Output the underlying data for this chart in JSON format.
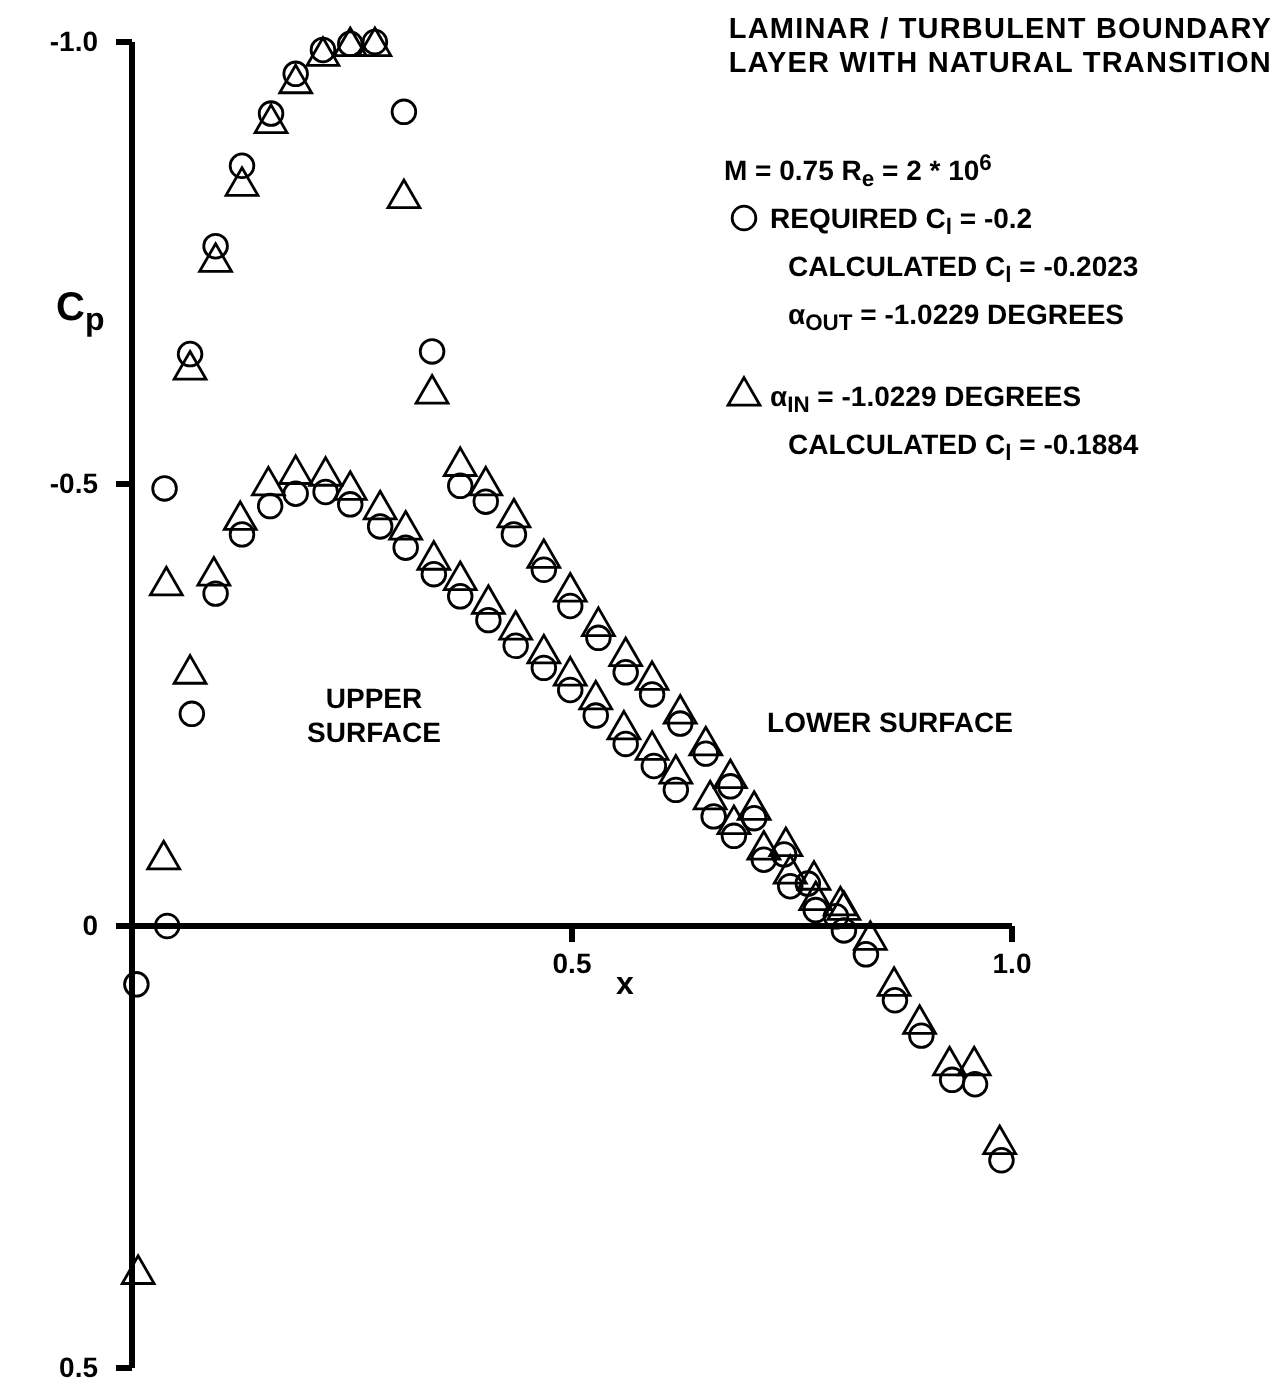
{
  "chart_data": {
    "type": "scatter",
    "title": "LAMINAR / TURBULENT BOUNDARY LAYER WITH NATURAL TRANSITION",
    "subtitle": "M = 0.75   R$_{e}$ = 2 * 10$^{6}$",
    "xlabel": "x",
    "ylabel": "C$_{p}$",
    "xlim": [
      0,
      1.0
    ],
    "xticks": [
      0.5,
      {
        "value": 1.0,
        "label": "1.0"
      }
    ],
    "ylim": [
      0.5,
      -1.0
    ],
    "yticks": [
      {
        "value": -1.0,
        "label": "-1.0"
      },
      -0.5,
      0,
      0.5
    ],
    "legend": "top right",
    "grid": false,
    "series": [
      {
        "name": "REQUIRED C$_{l}$ = -0.2",
        "color": "#000000",
        "marker": "circle",
        "x": [
          0.005,
          0.04,
          0.068,
          0.037,
          0.066,
          0.095,
          0.125,
          0.158,
          0.186,
          0.217,
          0.248,
          0.276,
          0.309,
          0.341,
          0.373,
          0.402,
          0.434,
          0.468,
          0.498,
          0.53,
          0.561,
          0.591,
          0.623,
          0.652,
          0.68,
          0.707,
          0.741,
          0.768,
          0.8,
          0.834,
          0.867,
          0.897,
          0.932,
          0.958,
          0.988,
          0.095,
          0.125,
          0.157,
          0.186,
          0.22,
          0.248,
          0.282,
          0.311,
          0.343,
          0.373,
          0.405,
          0.436,
          0.468,
          0.498,
          0.527,
          0.561,
          0.593,
          0.618,
          0.661,
          0.684,
          0.718,
          0.748,
          0.777,
          0.809
        ],
        "values": [
          0.066,
          0,
          -0.24,
          -0.495,
          -0.647,
          -0.769,
          -0.86,
          -0.919,
          -0.964,
          -0.991,
          -0.998,
          -1.0,
          -0.921,
          -0.65,
          -0.498,
          -0.48,
          -0.443,
          -0.403,
          -0.362,
          -0.326,
          -0.287,
          -0.262,
          -0.229,
          -0.195,
          -0.158,
          -0.122,
          -0.081,
          -0.048,
          -0.011,
          0.032,
          0.084,
          0.124,
          0.174,
          0.179,
          0.265,
          -0.376,
          -0.443,
          -0.475,
          -0.489,
          -0.491,
          -0.477,
          -0.452,
          -0.428,
          -0.398,
          -0.373,
          -0.346,
          -0.317,
          -0.292,
          -0.267,
          -0.238,
          -0.206,
          -0.181,
          -0.154,
          -0.124,
          -0.102,
          -0.075,
          -0.045,
          -0.018,
          0.005
        ]
      },
      {
        "name": "α$_{IN}$ = -1.0229 DEGREES",
        "color": "#000000",
        "marker": "triangle",
        "x": [
          0.007,
          0.036,
          0.066,
          0.039,
          0.066,
          0.095,
          0.125,
          0.158,
          0.186,
          0.217,
          0.248,
          0.276,
          0.309,
          0.341,
          0.373,
          0.402,
          0.434,
          0.468,
          0.498,
          0.53,
          0.561,
          0.591,
          0.623,
          0.652,
          0.68,
          0.707,
          0.743,
          0.775,
          0.805,
          0.839,
          0.866,
          0.895,
          0.929,
          0.957,
          0.986,
          0.093,
          0.123,
          0.155,
          0.186,
          0.22,
          0.248,
          0.282,
          0.311,
          0.343,
          0.373,
          0.405,
          0.436,
          0.468,
          0.498,
          0.527,
          0.559,
          0.591,
          0.618,
          0.657,
          0.684,
          0.718,
          0.748,
          0.777,
          0.809
        ],
        "values": [
          0.394,
          -0.075,
          -0.285,
          -0.385,
          -0.629,
          -0.751,
          -0.837,
          -0.908,
          -0.953,
          -0.984,
          -0.995,
          -0.995,
          -0.823,
          -0.602,
          -0.52,
          -0.498,
          -0.462,
          -0.416,
          -0.378,
          -0.339,
          -0.305,
          -0.278,
          -0.24,
          -0.204,
          -0.167,
          -0.131,
          -0.09,
          -0.052,
          -0.023,
          0.016,
          0.068,
          0.111,
          0.158,
          0.158,
          0.247,
          -0.396,
          -0.459,
          -0.498,
          -0.511,
          -0.509,
          -0.493,
          -0.471,
          -0.448,
          -0.414,
          -0.391,
          -0.364,
          -0.335,
          -0.308,
          -0.283,
          -0.256,
          -0.222,
          -0.199,
          -0.172,
          -0.143,
          -0.115,
          -0.086,
          -0.059,
          -0.029,
          -0.018
        ]
      }
    ],
    "annotations": [
      "CALCULATED C$_{l}$ = -0.2023",
      "α$_{OUT}$ = -1.0229 DEGREES",
      "CALCULATED C$_{l}$ = -0.1884",
      "UPPER SURFACE",
      "LOWER SURFACE"
    ]
  }
}
